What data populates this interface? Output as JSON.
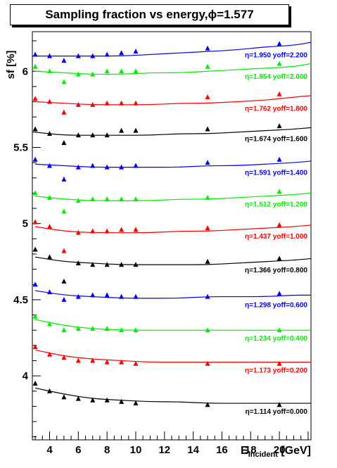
{
  "title_parts": {
    "main": "Sampling fraction vs energy, ",
    "phi_symbol": "ϕ",
    "rest": "=1.577"
  },
  "chart_data": {
    "type": "scatter",
    "title": "Sampling fraction vs energy, ϕ=1.577",
    "xlabel_main": "E",
    "xlabel_sub": "incident",
    "xlabel_unit": " [GeV]",
    "ylabel": "sf [%]",
    "xlim": [
      2.8,
      22.2
    ],
    "ylim": [
      3.58,
      6.26
    ],
    "xticks": [
      4,
      6,
      8,
      10,
      12,
      14,
      16,
      18,
      20
    ],
    "yticks": [
      4,
      4.5,
      5,
      5.5,
      6
    ],
    "x": [
      3,
      4,
      5,
      6,
      7,
      8,
      9,
      10,
      15,
      20
    ],
    "eta_symbol": "η",
    "series": [
      {
        "label": "=1.114 yoff=0.000",
        "color": "#000000",
        "y": [
          3.95,
          3.9,
          3.86,
          3.85,
          3.84,
          3.84,
          3.83,
          3.82,
          3.81,
          3.81
        ],
        "curve": [
          3.92,
          3.88,
          3.85,
          3.84,
          3.83,
          3.83,
          3.82,
          3.82,
          3.82,
          3.82,
          3.82
        ]
      },
      {
        "label": "=1.173 yoff=0.200",
        "color": "#ff0000",
        "y": [
          4.19,
          4.14,
          4.12,
          4.1,
          4.1,
          4.09,
          4.09,
          4.08,
          4.08,
          4.08
        ],
        "curve": [
          4.17,
          4.13,
          4.11,
          4.1,
          4.09,
          4.09,
          4.09,
          4.09,
          4.09,
          4.09,
          4.09
        ]
      },
      {
        "label": "=1.234 yoff=0.400",
        "color": "#00ee00",
        "y": [
          4.39,
          4.34,
          4.3,
          4.31,
          4.31,
          4.31,
          4.3,
          4.3,
          4.3,
          4.3
        ],
        "curve": [
          4.37,
          4.33,
          4.31,
          4.3,
          4.3,
          4.3,
          4.3,
          4.3,
          4.3,
          4.3,
          4.3
        ]
      },
      {
        "label": "=1.298 yoff=0.600",
        "color": "#0000ff",
        "y": [
          4.6,
          4.55,
          4.5,
          4.52,
          4.53,
          4.53,
          4.52,
          4.52,
          4.52,
          4.54
        ],
        "curve": [
          4.56,
          4.53,
          4.52,
          4.51,
          4.51,
          4.51,
          4.52,
          4.52,
          4.52,
          4.53,
          4.53
        ]
      },
      {
        "label": "=1.366 yoff=0.800",
        "color": "#000000",
        "y": [
          4.83,
          4.78,
          4.62,
          4.74,
          4.73,
          4.73,
          4.73,
          4.73,
          4.75,
          4.77
        ],
        "curve": [
          4.78,
          4.75,
          4.74,
          4.73,
          4.73,
          4.73,
          4.73,
          4.74,
          4.75,
          4.76,
          4.77
        ]
      },
      {
        "label": "=1.437 yoff=1.000",
        "color": "#ff0000",
        "y": [
          5.01,
          4.98,
          4.82,
          4.94,
          4.95,
          4.95,
          4.96,
          4.96,
          4.97,
          4.99
        ],
        "curve": [
          4.98,
          4.95,
          4.94,
          4.94,
          4.94,
          4.95,
          4.95,
          4.96,
          4.97,
          4.98,
          4.99
        ]
      },
      {
        "label": "=1.512 yoff=1.200",
        "color": "#00ee00",
        "y": [
          5.2,
          5.17,
          5.08,
          5.15,
          5.16,
          5.16,
          5.16,
          5.16,
          5.17,
          5.21
        ],
        "curve": [
          5.18,
          5.16,
          5.15,
          5.15,
          5.15,
          5.16,
          5.16,
          5.17,
          5.18,
          5.19,
          5.2
        ]
      },
      {
        "label": "=1.591 yoff=1.400",
        "color": "#0000ff",
        "y": [
          5.42,
          5.38,
          5.29,
          5.37,
          5.38,
          5.37,
          5.37,
          5.38,
          5.4,
          5.42
        ],
        "curve": [
          5.39,
          5.38,
          5.37,
          5.37,
          5.37,
          5.37,
          5.38,
          5.38,
          5.39,
          5.4,
          5.41
        ]
      },
      {
        "label": "=1.674 yoff=1.600",
        "color": "#000000",
        "y": [
          5.62,
          5.59,
          5.53,
          5.58,
          5.58,
          5.58,
          5.61,
          5.61,
          5.62,
          5.64
        ],
        "curve": [
          5.6,
          5.58,
          5.58,
          5.58,
          5.58,
          5.59,
          5.59,
          5.6,
          5.61,
          5.62,
          5.63
        ]
      },
      {
        "label": "=1.762 yoff=1.800",
        "color": "#ff0000",
        "y": [
          5.82,
          5.8,
          5.73,
          5.78,
          5.78,
          5.79,
          5.79,
          5.79,
          5.83,
          5.85
        ],
        "curve": [
          5.8,
          5.79,
          5.78,
          5.78,
          5.78,
          5.79,
          5.79,
          5.8,
          5.81,
          5.83,
          5.84
        ]
      },
      {
        "label": "=1.854 yoff=2.000",
        "color": "#00ee00",
        "y": [
          6.03,
          6.0,
          5.93,
          5.98,
          5.98,
          6.0,
          6.0,
          6.0,
          6.03,
          6.05
        ],
        "curve": [
          6.0,
          5.99,
          5.98,
          5.98,
          5.99,
          5.99,
          6.0,
          6.01,
          6.02,
          6.03,
          6.05
        ]
      },
      {
        "label": "=1.950 yoff=2.200",
        "color": "#0000ff",
        "y": [
          6.11,
          6.1,
          6.07,
          6.1,
          6.1,
          6.11,
          6.12,
          6.13,
          6.15,
          6.18
        ],
        "curve": [
          6.1,
          6.1,
          6.1,
          6.1,
          6.11,
          6.12,
          6.13,
          6.14,
          6.16,
          6.17,
          6.19
        ]
      }
    ]
  }
}
